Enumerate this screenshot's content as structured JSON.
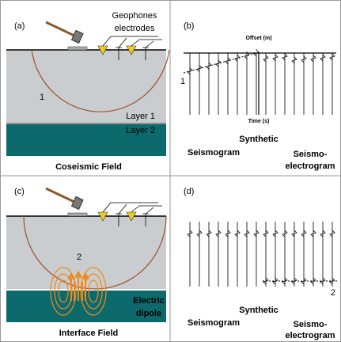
{
  "panels": [
    {
      "label": "(a)",
      "geophones": "Geophones",
      "electrodes": "electrodes",
      "wave": "1",
      "layer1": "Layer 1",
      "layer2": "Layer 2",
      "caption": "Coseismic Field"
    },
    {
      "label": "(b)",
      "offset": "Offset (m)",
      "arrival": "1",
      "time": "Time (s)",
      "synthetic": "Synthetic",
      "seismogram": "Seismogram",
      "seismo": "Seismo-",
      "electrogram": "electrogram"
    },
    {
      "label": "(c)",
      "source": "2",
      "electric": "Electric",
      "dipole": "dipole",
      "caption": "Interface Field"
    },
    {
      "label": "(d)",
      "arrival": "2",
      "synthetic": "Synthetic",
      "seismogram": "Seismogram",
      "seismo": "Seismo-",
      "electrogram": "electrogram"
    }
  ]
}
